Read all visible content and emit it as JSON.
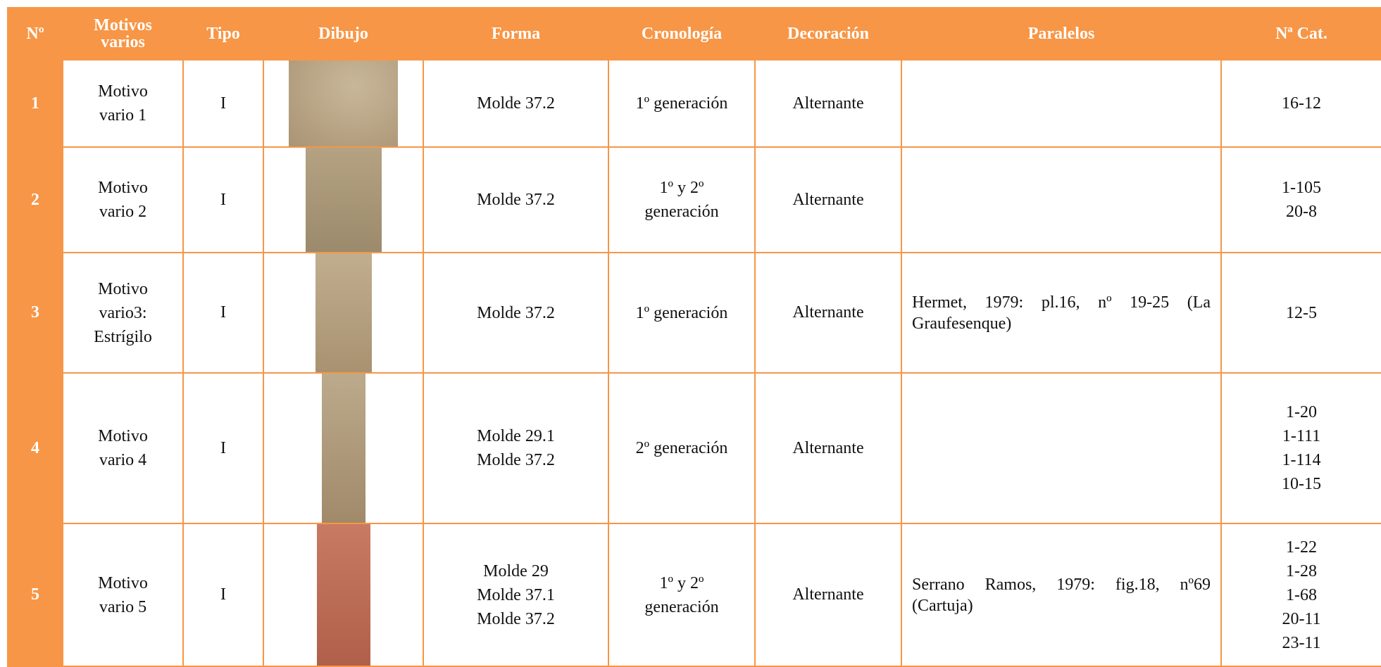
{
  "table": {
    "header": [
      "Nº",
      "Motivos varios",
      "Tipo",
      "Dibujo",
      "Forma",
      "Cronología",
      "Decoración",
      "Paralelos",
      "Nª Cat."
    ],
    "rows": [
      {
        "n": "1",
        "motivo": [
          "Motivo",
          "vario 1"
        ],
        "tipo": "I",
        "forma": [
          "Molde 37.2"
        ],
        "cronologia": [
          "1º generación"
        ],
        "decoracion": "Alternante",
        "paralelos": null,
        "cat": [
          "16-12"
        ]
      },
      {
        "n": "2",
        "motivo": [
          "Motivo",
          "vario 2"
        ],
        "tipo": "I",
        "forma": [
          "Molde 37.2"
        ],
        "cronologia": [
          "1º y 2º",
          "generación"
        ],
        "decoracion": "Alternante",
        "paralelos": null,
        "cat": [
          "1-105",
          "20-8"
        ]
      },
      {
        "n": "3",
        "motivo": [
          "Motivo",
          "vario3:",
          "Estrígilo"
        ],
        "tipo": "I",
        "forma": [
          "Molde 37.2"
        ],
        "cronologia": [
          "1º generación"
        ],
        "decoracion": "Alternante",
        "paralelos": "Hermet, 1979: pl.16, nº 19-25 (La Graufesenque)",
        "cat": [
          "12-5"
        ]
      },
      {
        "n": "4",
        "motivo": [
          "Motivo",
          "vario 4"
        ],
        "tipo": "I",
        "forma": [
          "Molde 29.1",
          "Molde 37.2"
        ],
        "cronologia": [
          "2º generación"
        ],
        "decoracion": "Alternante",
        "paralelos": null,
        "cat": [
          "1-20",
          "1-111",
          "1-114",
          "10-15"
        ]
      },
      {
        "n": "5",
        "motivo": [
          "Motivo",
          "vario 5"
        ],
        "tipo": "I",
        "forma": [
          "Molde 29",
          "Molde 37.1",
          "Molde 37.2"
        ],
        "cronologia": [
          "1º y 2º",
          "generación"
        ],
        "decoracion": "Alternante",
        "paralelos": "Serrano Ramos, 1979: fig.18, nº69 (Cartuja)",
        "cat": [
          "1-22",
          "1-28",
          "1-68",
          "20-11",
          "23-11"
        ]
      }
    ]
  }
}
